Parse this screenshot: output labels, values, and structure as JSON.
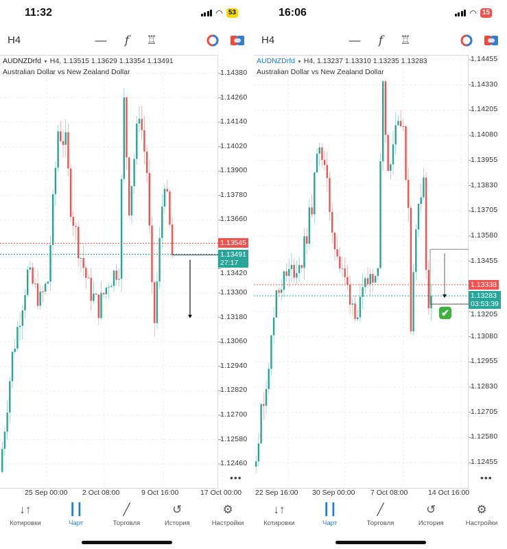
{
  "colors": {
    "up": "#26a69a",
    "down": "#ef5350",
    "accent": "#1e7ad6",
    "ask": "#ef5350",
    "bid": "#26a69a"
  },
  "tab_bar": [
    {
      "label": "Котировки",
      "icon": "quotes-arrows-icon"
    },
    {
      "label": "Чарт",
      "icon": "candlestick-chart-icon",
      "active": true
    },
    {
      "label": "Торговля",
      "icon": "trade-chart-icon"
    },
    {
      "label": "История",
      "icon": "history-clock-icon"
    },
    {
      "label": "Настройки",
      "icon": "settings-gear-icon"
    }
  ],
  "screens": [
    {
      "status": {
        "time": "11:32",
        "battery": "53",
        "battery_color": "#f5d90a"
      },
      "toolbar": {
        "timeframe": "H4"
      },
      "header": {
        "symbol": "AUDNZDrfd",
        "ohlc": "H4, 1.13515 1.13629 1.13354 1.13491",
        "description": "Australian Dollar vs New Zealand Dollar"
      },
      "ylim": [
        1.12339,
        1.14471
      ],
      "y_ticks": [
        "1.14380",
        "1.14260",
        "1.14140",
        "1.14020",
        "1.13900",
        "1.13780",
        "1.13660",
        "1.13420",
        "1.13300",
        "1.13180",
        "1.13060",
        "1.12940",
        "1.12820",
        "1.12700",
        "1.12580",
        "1.12460"
      ],
      "x_ticks": [
        "25 Sep 00:00",
        "2 Oct 08:00",
        "9 Oct 16:00",
        "17 Oct 00:00"
      ],
      "ask": {
        "price": "1.13545"
      },
      "bid": {
        "price": "1.13491",
        "timer": "27:17"
      },
      "n_candles": 68,
      "path": [
        [
          0,
          1.12421
        ],
        [
          5,
          1.12992
        ],
        [
          11,
          1.13395
        ],
        [
          16,
          1.13261
        ],
        [
          19,
          1.13362
        ],
        [
          21,
          1.13732
        ],
        [
          23,
          1.14101
        ],
        [
          26,
          1.14034
        ],
        [
          28,
          1.13732
        ],
        [
          31,
          1.1353
        ],
        [
          35,
          1.13328
        ],
        [
          39,
          1.13228
        ],
        [
          43,
          1.13362
        ],
        [
          47,
          1.13429
        ],
        [
          49,
          1.14236
        ],
        [
          51,
          1.13732
        ],
        [
          55,
          1.14202
        ],
        [
          58,
          1.139
        ],
        [
          60,
          1.13295
        ],
        [
          61,
          1.1316
        ],
        [
          64,
          1.13732
        ],
        [
          65,
          1.13866
        ],
        [
          68,
          1.13491
        ]
      ],
      "arrow": {
        "from": 1.13491,
        "to": 1.1318
      }
    },
    {
      "status": {
        "time": "16:06",
        "battery": "15",
        "battery_color": "#ef5350"
      },
      "toolbar": {
        "timeframe": "H4"
      },
      "header": {
        "symbol": "AUDNZDrfd",
        "ohlc": "H4, 1.13237 1.13310 1.13235 1.13283",
        "description": "Australian Dollar vs New Zealand Dollar"
      },
      "ylim": [
        1.12326,
        1.14479
      ],
      "y_ticks": [
        "1.14455",
        "1.14330",
        "1.14205",
        "1.14080",
        "1.13955",
        "1.13830",
        "1.13705",
        "1.13580",
        "1.13455",
        "1.13205",
        "1.13080",
        "1.12955",
        "1.12830",
        "1.12705",
        "1.12580",
        "1.12455"
      ],
      "x_ticks": [
        "22 Sep 16:00",
        "30 Sep 00:00",
        "7 Oct 08:00",
        "14 Oct 16:00"
      ],
      "ask": {
        "price": "1.13338"
      },
      "bid": {
        "price": "1.13283",
        "timer": "03:53:39"
      },
      "n_candles": 70,
      "path": [
        [
          0,
          1.12435
        ],
        [
          4,
          1.12776
        ],
        [
          7,
          1.13048
        ],
        [
          9,
          1.13321
        ],
        [
          14,
          1.13389
        ],
        [
          19,
          1.13457
        ],
        [
          23,
          1.1373
        ],
        [
          26,
          1.1407
        ],
        [
          28,
          1.139
        ],
        [
          31,
          1.13627
        ],
        [
          34,
          1.13423
        ],
        [
          38,
          1.13287
        ],
        [
          41,
          1.13185
        ],
        [
          45,
          1.13355
        ],
        [
          49,
          1.13457
        ],
        [
          51,
          1.14377
        ],
        [
          53,
          1.139
        ],
        [
          57,
          1.14206
        ],
        [
          59,
          1.1407
        ],
        [
          61,
          1.1373
        ],
        [
          62,
          1.1315
        ],
        [
          64,
          1.13593
        ],
        [
          65,
          1.13764
        ],
        [
          67,
          1.13883
        ],
        [
          68,
          1.13389
        ],
        [
          69,
          1.13237
        ],
        [
          70,
          1.13283
        ]
      ],
      "arrow": {
        "from": 1.1348,
        "to": 1.13283
      },
      "result": "✔"
    }
  ]
}
